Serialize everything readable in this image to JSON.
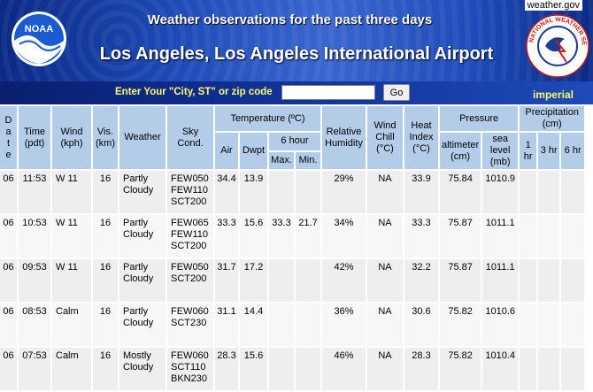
{
  "header": {
    "site_link": "weather.gov",
    "subtitle": "Weather observations for the past three days",
    "title": "Los Angeles, Los Angeles International Airport",
    "noaa_logo_text": "NOAA",
    "nws_logo_text": "NATIONAL WEATHER SERVICE"
  },
  "search": {
    "label": "Enter Your \"City, ST\" or zip code",
    "value": "",
    "go_label": "Go",
    "units_link": "imperial"
  },
  "table": {
    "h_date": "Date",
    "h_time": "Time (pdt)",
    "h_wind": "Wind (kph)",
    "h_vis": "Vis. (km)",
    "h_weather": "Weather",
    "h_sky": "Sky Cond.",
    "h_temperature": "Temperature (ºC)",
    "h_air": "Air",
    "h_dwpt": "Dwpt",
    "h_6hour": "6 hour",
    "h_max": "Max.",
    "h_min": "Min.",
    "h_rh": "Relative Humidity",
    "h_windchill": "Wind Chill (°C)",
    "h_heatindex": "Heat Index (°C)",
    "h_pressure": "Pressure",
    "h_altimeter": "altimeter (cm)",
    "h_sealevel": "sea level (mb)",
    "h_precip": "Precipitation (cm)",
    "h_1hr": "1 hr",
    "h_3hr": "3 hr",
    "h_6hr": "6 hr",
    "rows": [
      {
        "date": "06",
        "time": "11:53",
        "wind": "W 11",
        "vis": "16",
        "weather": "Partly Cloudy",
        "sky": [
          "FEW050",
          "FEW110",
          "SCT200"
        ],
        "air": "34.4",
        "dwpt": "13.9",
        "max6": "",
        "min6": "",
        "rh": "29%",
        "chill": "NA",
        "heat": "33.9",
        "alt": "75.84",
        "slp": "1010.9",
        "p1": "",
        "p3": "",
        "p6": ""
      },
      {
        "date": "06",
        "time": "10:53",
        "wind": "W 11",
        "vis": "16",
        "weather": "Partly Cloudy",
        "sky": [
          "FEW065",
          "FEW110",
          "SCT200"
        ],
        "air": "33.3",
        "dwpt": "15.6",
        "max6": "33.3",
        "min6": "21.7",
        "rh": "34%",
        "chill": "NA",
        "heat": "33.3",
        "alt": "75.87",
        "slp": "1011.1",
        "p1": "",
        "p3": "",
        "p6": ""
      },
      {
        "date": "06",
        "time": "09:53",
        "wind": "W 11",
        "vis": "16",
        "weather": "Partly Cloudy",
        "sky": [
          "FEW050",
          "SCT200"
        ],
        "air": "31.7",
        "dwpt": "17.2",
        "max6": "",
        "min6": "",
        "rh": "42%",
        "chill": "NA",
        "heat": "32.2",
        "alt": "75.87",
        "slp": "1011.1",
        "p1": "",
        "p3": "",
        "p6": ""
      },
      {
        "date": "06",
        "time": "08:53",
        "wind": "Calm",
        "vis": "16",
        "weather": "Partly Cloudy",
        "sky": [
          "FEW060",
          "SCT230"
        ],
        "air": "31.1",
        "dwpt": "14.4",
        "max6": "",
        "min6": "",
        "rh": "36%",
        "chill": "NA",
        "heat": "30.6",
        "alt": "75.82",
        "slp": "1010.6",
        "p1": "",
        "p3": "",
        "p6": ""
      },
      {
        "date": "06",
        "time": "07:53",
        "wind": "Calm",
        "vis": "16",
        "weather": "Mostly Cloudy",
        "sky": [
          "FEW060",
          "SCT110",
          "BKN230"
        ],
        "air": "28.3",
        "dwpt": "15.6",
        "max6": "",
        "min6": "",
        "rh": "46%",
        "chill": "NA",
        "heat": "28.3",
        "alt": "75.82",
        "slp": "1010.4",
        "p1": "",
        "p3": "",
        "p6": ""
      }
    ]
  }
}
